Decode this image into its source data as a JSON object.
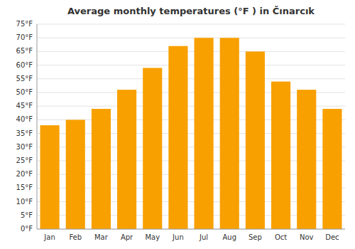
{
  "chart_data": {
    "type": "bar",
    "title": "Average monthly temperatures (°F ) in Čınarcık",
    "categories": [
      "Jan",
      "Feb",
      "Mar",
      "Apr",
      "May",
      "Jun",
      "Jul",
      "Aug",
      "Sep",
      "Oct",
      "Nov",
      "Dec"
    ],
    "values": [
      38,
      40,
      44,
      51,
      59,
      67,
      70,
      70,
      65,
      54,
      51,
      44
    ],
    "color": "#F8A000",
    "ylim": [
      0,
      75
    ],
    "yticks": [
      {
        "value": 0,
        "label": "0°F"
      },
      {
        "value": 5,
        "label": "5°F"
      },
      {
        "value": 10,
        "label": "10°F"
      },
      {
        "value": 15,
        "label": "15°F"
      },
      {
        "value": 20,
        "label": "20°F"
      },
      {
        "value": 25,
        "label": "25°F"
      },
      {
        "value": 30,
        "label": "30°F"
      },
      {
        "value": 35,
        "label": "35°F"
      },
      {
        "value": 40,
        "label": "40°F"
      },
      {
        "value": 45,
        "label": "45°F"
      },
      {
        "value": 50,
        "label": "50°F"
      },
      {
        "value": 55,
        "label": "55°F"
      },
      {
        "value": 60,
        "label": "60°F"
      },
      {
        "value": 65,
        "label": "65°F"
      },
      {
        "value": 70,
        "label": "70°F"
      },
      {
        "value": 75,
        "label": "75°F"
      }
    ],
    "grid": true
  }
}
